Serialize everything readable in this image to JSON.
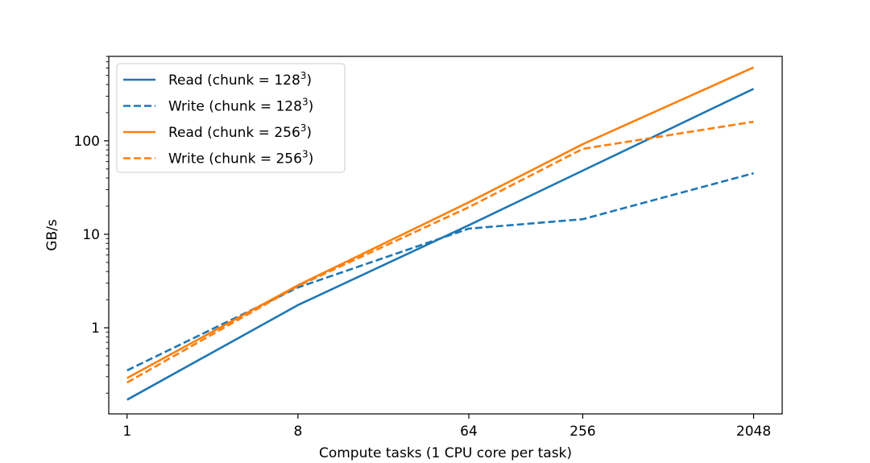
{
  "chart_data": {
    "type": "line",
    "title": "",
    "xlabel": "Compute tasks (1 CPU core per task)",
    "ylabel": "GB/s",
    "xscale": "log2",
    "yscale": "log10",
    "xlim": [
      0.8,
      2900
    ],
    "ylim": [
      0.12,
      800
    ],
    "x_ticks": [
      1,
      8,
      64,
      256,
      2048
    ],
    "x_tick_labels": [
      "1",
      "8",
      "64",
      "256",
      "2048"
    ],
    "y_ticks": [
      1,
      10,
      100
    ],
    "y_tick_labels": [
      "1",
      "10",
      "100"
    ],
    "grid": false,
    "legend_position": "top-left",
    "x": [
      1,
      8,
      64,
      256,
      2048
    ],
    "series": [
      {
        "name": "Read (chunk = 128³)",
        "label_text": "Read (chunk = 128",
        "label_sup": "3",
        "label_end": ")",
        "color": "#1f77b4",
        "linestyle": "solid",
        "values": [
          0.17,
          1.75,
          12.5,
          48,
          360
        ]
      },
      {
        "name": "Write (chunk = 128³)",
        "label_text": "Write (chunk = 128",
        "label_sup": "3",
        "label_end": ")",
        "color": "#1f77b4",
        "linestyle": "dashed",
        "values": [
          0.35,
          2.7,
          11.5,
          14.5,
          45
        ]
      },
      {
        "name": "Read (chunk = 256³)",
        "label_text": "Read (chunk = 256",
        "label_sup": "3",
        "label_end": ")",
        "color": "#ff7f0e",
        "linestyle": "solid",
        "values": [
          0.29,
          2.85,
          22,
          92,
          610
        ]
      },
      {
        "name": "Write (chunk = 256³)",
        "label_text": "Write (chunk = 256",
        "label_sup": "3",
        "label_end": ")",
        "color": "#ff7f0e",
        "linestyle": "dashed",
        "values": [
          0.26,
          2.8,
          19.5,
          82,
          160
        ]
      }
    ]
  }
}
